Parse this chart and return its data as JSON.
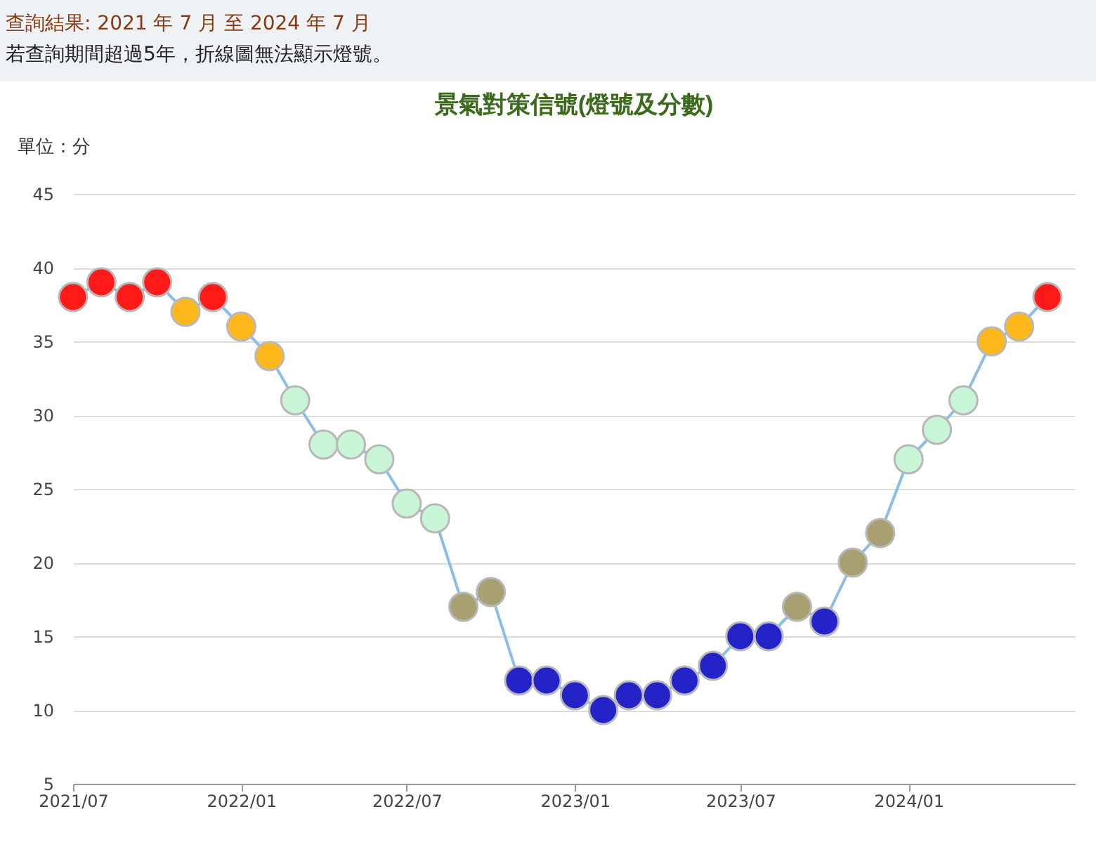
{
  "chart_data": {
    "type": "line",
    "title": "景氣對策信號(燈號及分數)",
    "ylabel": "單位：分",
    "annotations": [
      "查詢結果: 2021 年 7 月 至 2024 年 7 月",
      "若查詢期間超過5年，折線圖無法顯示燈號。"
    ],
    "x": [
      "2021-07",
      "2021-08",
      "2021-09",
      "2021-10",
      "2021-11",
      "2021-12",
      "2022-01",
      "2022-02",
      "2022-03",
      "2022-04",
      "2022-05",
      "2022-06",
      "2022-07",
      "2022-08",
      "2022-09",
      "2022-10",
      "2022-11",
      "2022-12",
      "2023-01",
      "2023-02",
      "2023-03",
      "2023-04",
      "2023-05",
      "2023-06",
      "2023-07",
      "2023-08",
      "2023-09",
      "2023-10",
      "2023-11",
      "2023-12",
      "2024-01",
      "2024-02",
      "2024-03",
      "2024-04",
      "2024-05",
      "2024-06"
    ],
    "series": [
      {
        "color": "#8bbde8",
        "values": [
          38,
          39,
          38,
          39,
          37,
          38,
          36,
          34,
          31,
          28,
          28,
          27,
          24,
          23,
          17,
          18,
          12,
          12,
          11,
          10,
          11,
          11,
          12,
          13,
          15,
          15,
          17,
          16,
          20,
          22,
          27,
          29,
          31,
          35,
          36,
          38
        ],
        "colors": [
          "#ff1a1a",
          "#ff1a1a",
          "#ff1a1a",
          "#ff1a1a",
          "#ffb81c",
          "#ff1a1a",
          "#ffb81c",
          "#ffb81c",
          "#c8f5d6",
          "#c8f5d6",
          "#c8f5d6",
          "#c8f5d6",
          "#c8f5d6",
          "#c8f5d6",
          "#a8a070",
          "#a8a070",
          "#2323c8",
          "#2323c8",
          "#2323c8",
          "#2323c8",
          "#2323c8",
          "#2323c8",
          "#2323c8",
          "#2323c8",
          "#2323c8",
          "#2323c8",
          "#a8a070",
          "#2323c8",
          "#a8a070",
          "#a8a070",
          "#c8f5d6",
          "#c8f5d6",
          "#c8f5d6",
          "#ffb81c",
          "#ffb81c",
          "#ff1a1a"
        ]
      }
    ],
    "xlim": [
      "2021-07",
      "2024-07"
    ],
    "xticks": [
      {
        "value": "2021-07",
        "label": "2021/07"
      },
      {
        "value": "2022-01",
        "label": "2022/01"
      },
      {
        "value": "2022-07",
        "label": "2022/07"
      },
      {
        "value": "2023-01",
        "label": "2023/01"
      },
      {
        "value": "2023-07",
        "label": "2023/07"
      },
      {
        "value": "2024-01",
        "label": "2024/01"
      }
    ],
    "ylim": [
      5,
      45
    ],
    "yticks": [
      5,
      10,
      15,
      20,
      25,
      30,
      35,
      40,
      45
    ],
    "grid": "y",
    "marker": "circle",
    "line_style": "solid"
  }
}
